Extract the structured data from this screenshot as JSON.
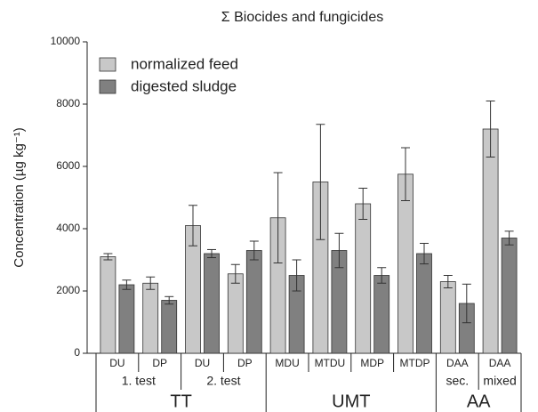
{
  "chart_data": {
    "type": "bar",
    "title": "Σ Biocides and fungicides",
    "ylabel": "Concentration (µg kg⁻¹)",
    "groups": [
      {
        "name": "TT",
        "subgroups": [
          {
            "name": "1. test",
            "categories": [
              "DU",
              "DP"
            ]
          },
          {
            "name": "2. test",
            "categories": [
              "DU",
              "DP"
            ]
          }
        ]
      },
      {
        "name": "UMT",
        "categories": [
          "MDU",
          "MTDU",
          "MDP",
          "MTDP"
        ]
      },
      {
        "name": "AA",
        "subgroups": [
          {
            "name": "sec.",
            "categories": [
              "DAA"
            ]
          },
          {
            "name": "mixed",
            "categories": [
              "DAA"
            ]
          }
        ]
      }
    ],
    "series": [
      {
        "name": "normalized feed",
        "color": "#c8c8c8",
        "values": [
          3100,
          2250,
          4100,
          2550,
          4350,
          5500,
          4800,
          5750,
          2300,
          7200
        ],
        "errors": [
          100,
          200,
          650,
          300,
          1450,
          1850,
          500,
          850,
          200,
          900
        ]
      },
      {
        "name": "digested sludge",
        "color": "#808080",
        "values": [
          2200,
          1700,
          3200,
          3300,
          2500,
          3300,
          2500,
          3200,
          1600,
          3700
        ],
        "errors": [
          150,
          120,
          130,
          300,
          500,
          550,
          250,
          330,
          620,
          220
        ]
      }
    ],
    "ylim": [
      0,
      10000
    ],
    "yticks": [
      0,
      2000,
      4000,
      6000,
      8000,
      10000
    ],
    "legend": "upper left"
  }
}
